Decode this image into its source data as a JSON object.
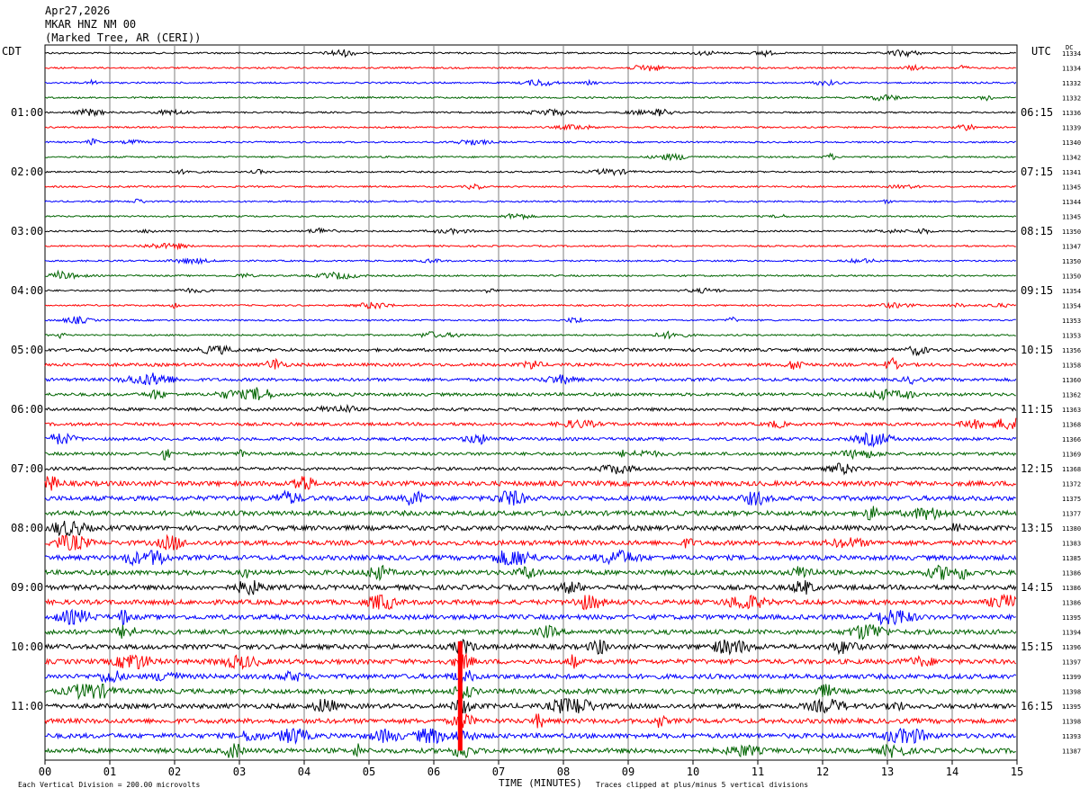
{
  "header": {
    "date": "Apr27,2026",
    "station": "MKAR HNZ NM 00",
    "location": "(Marked Tree, AR (CERI))"
  },
  "left_tz": "CDT",
  "right_tz": "UTC",
  "dc_label": "DC",
  "footer": {
    "scale_note": "Each Vertical Division = 200.00 microvolts",
    "xlabel": "TIME (MINUTES)",
    "clip_note": "Traces clipped at plus/minus 5 vertical divisions"
  },
  "colors": {
    "trace_cycle": [
      "#000000",
      "#ff0000",
      "#0000ff",
      "#006400"
    ],
    "grid": "#7f7f7f"
  },
  "chart_data": {
    "type": "line",
    "title": "MKAR HNZ NM 00",
    "xlabel": "TIME (MINUTES)",
    "ylabel": "",
    "xlim": [
      0,
      15
    ],
    "x_ticks": [
      "00",
      "01",
      "02",
      "03",
      "04",
      "05",
      "06",
      "07",
      "08",
      "09",
      "10",
      "11",
      "12",
      "13",
      "14",
      "15"
    ],
    "left_hour_labels": [
      "01:00",
      "02:00",
      "03:00",
      "04:00",
      "05:00",
      "06:00",
      "07:00",
      "08:00",
      "09:00",
      "10:00",
      "11:00"
    ],
    "right_hour_labels": [
      "06:15",
      "07:15",
      "08:15",
      "09:15",
      "10:15",
      "11:15",
      "12:15",
      "13:15",
      "14:15",
      "15:15",
      "16:15"
    ],
    "dc_offsets": [
      11334,
      11334,
      11332,
      11332,
      11336,
      11339,
      11340,
      11342,
      11341,
      11345,
      11344,
      11345,
      11350,
      11347,
      11350,
      11350,
      11354,
      11354,
      11353,
      11353,
      11356,
      11358,
      11360,
      11362,
      11363,
      11368,
      11366,
      11369,
      11368,
      11372,
      11375,
      11377,
      11380,
      11383,
      11385,
      11386,
      11386,
      11386,
      11395,
      11394,
      11396,
      11397,
      11399,
      11398,
      11395,
      11398,
      11393,
      11387
    ],
    "amplitude_level": [
      1,
      1,
      1,
      1,
      1,
      1,
      1,
      1,
      1,
      1,
      1,
      1,
      1,
      1,
      1,
      1,
      1,
      1,
      1,
      1,
      2,
      2,
      2,
      2,
      2,
      2,
      2,
      2,
      2,
      3,
      3,
      3,
      3,
      3,
      3,
      3,
      3,
      3,
      3,
      3,
      3,
      3,
      3,
      3,
      3,
      3,
      3,
      3
    ],
    "events": [
      {
        "minute": 6.4,
        "row_start": 40,
        "row_end": 47,
        "description": "clipped red spike"
      },
      {
        "minute": 11.7,
        "row_start": 35,
        "row_end": 36,
        "description": "burst"
      }
    ],
    "grid": true
  }
}
